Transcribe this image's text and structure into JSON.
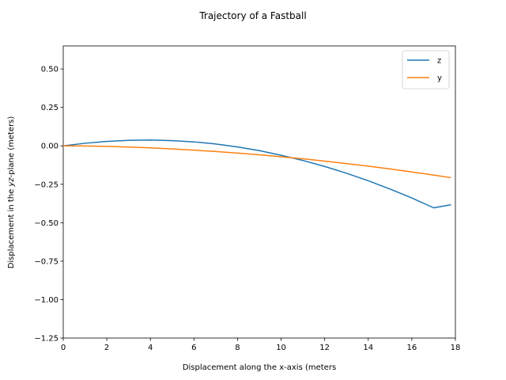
{
  "chart_data": {
    "type": "line",
    "title": "Trajectory of a Fastball",
    "xlabel": "Displacement along the x-axis (meters",
    "ylabel_parts": [
      "Displacement in the ",
      "yz",
      "-plane (meters)"
    ],
    "xlim": [
      0,
      18
    ],
    "ylim": [
      -1.25,
      0.65
    ],
    "xticks": [
      0,
      2,
      4,
      6,
      8,
      10,
      12,
      14,
      16,
      18
    ],
    "xtick_labels": [
      "0",
      "2",
      "4",
      "6",
      "8",
      "10",
      "12",
      "14",
      "16",
      "18"
    ],
    "yticks": [
      0.5,
      0.25,
      0.0,
      -0.25,
      -0.5,
      -0.75,
      -1.0,
      -1.25
    ],
    "ytick_labels": [
      "0.50",
      "0.25",
      "0.00",
      "−0.25",
      "−0.50",
      "−0.75",
      "−1.00",
      "−1.25"
    ],
    "grid": false,
    "legend_position": "top-right",
    "series": [
      {
        "name": "z",
        "color": "#1f77b4",
        "x": [
          0,
          1,
          2,
          3,
          4,
          5,
          6,
          7,
          8,
          9,
          10,
          11,
          12,
          13,
          14,
          15,
          16,
          17,
          17.8
        ],
        "y": [
          0.0,
          0.017,
          0.029,
          0.036,
          0.038,
          0.034,
          0.026,
          0.012,
          -0.007,
          -0.031,
          -0.061,
          -0.095,
          -0.134,
          -0.178,
          -0.227,
          -0.281,
          -0.339,
          -0.403,
          -0.383
        ]
      },
      {
        "name": "y",
        "color": "#ff7f0e",
        "x": [
          0,
          1,
          2,
          3,
          4,
          5,
          6,
          7,
          8,
          9,
          10,
          11,
          12,
          13,
          14,
          15,
          16,
          17,
          17.8
        ],
        "y": [
          0.0,
          -0.001,
          -0.003,
          -0.008,
          -0.013,
          -0.02,
          -0.028,
          -0.037,
          -0.047,
          -0.058,
          -0.071,
          -0.084,
          -0.099,
          -0.115,
          -0.132,
          -0.15,
          -0.17,
          -0.19,
          -0.207
        ]
      }
    ]
  }
}
